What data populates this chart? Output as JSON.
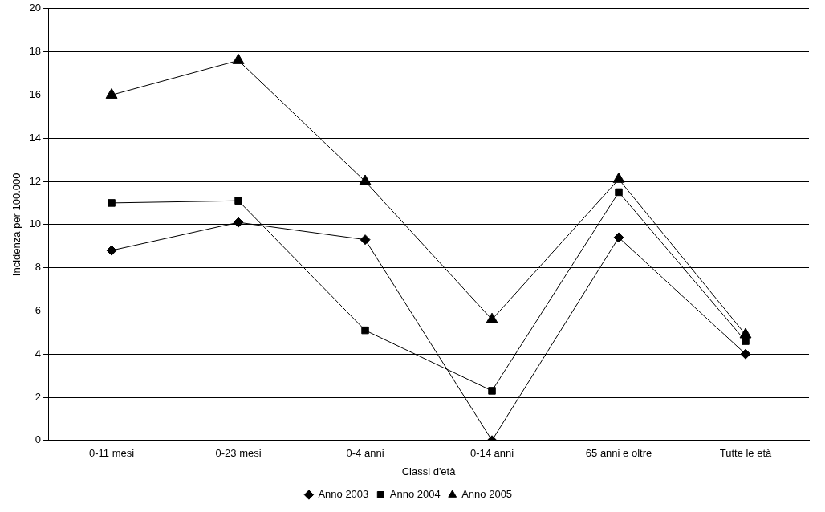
{
  "chart_data": {
    "type": "line",
    "xlabel": "Classi d'età",
    "ylabel": "Incidenza per 100.000",
    "categories": [
      "0-11 mesi",
      "0-23 mesi",
      "0-4 anni",
      "0-14 anni",
      "65 anni e oltre",
      "Tutte le età"
    ],
    "series": [
      {
        "name": "Anno 2003",
        "color": "#000000",
        "marker": "diamond",
        "values": [
          8.8,
          10.1,
          9.3,
          0,
          9.4,
          4.0
        ]
      },
      {
        "name": "Anno 2004",
        "color": "#000000",
        "marker": "square",
        "values": [
          11.0,
          11.1,
          5.1,
          2.3,
          11.5,
          4.6
        ]
      },
      {
        "name": "Anno 2005",
        "color": "#000000",
        "marker": "triangle",
        "values": [
          16.0,
          17.6,
          12.0,
          5.6,
          12.1,
          4.9
        ]
      }
    ],
    "ylim": [
      0,
      20
    ],
    "yticks": [
      0,
      2,
      4,
      6,
      8,
      10,
      12,
      14,
      16,
      18,
      20
    ],
    "grid": "y",
    "legend": "bottom",
    "line_style": "solid"
  }
}
